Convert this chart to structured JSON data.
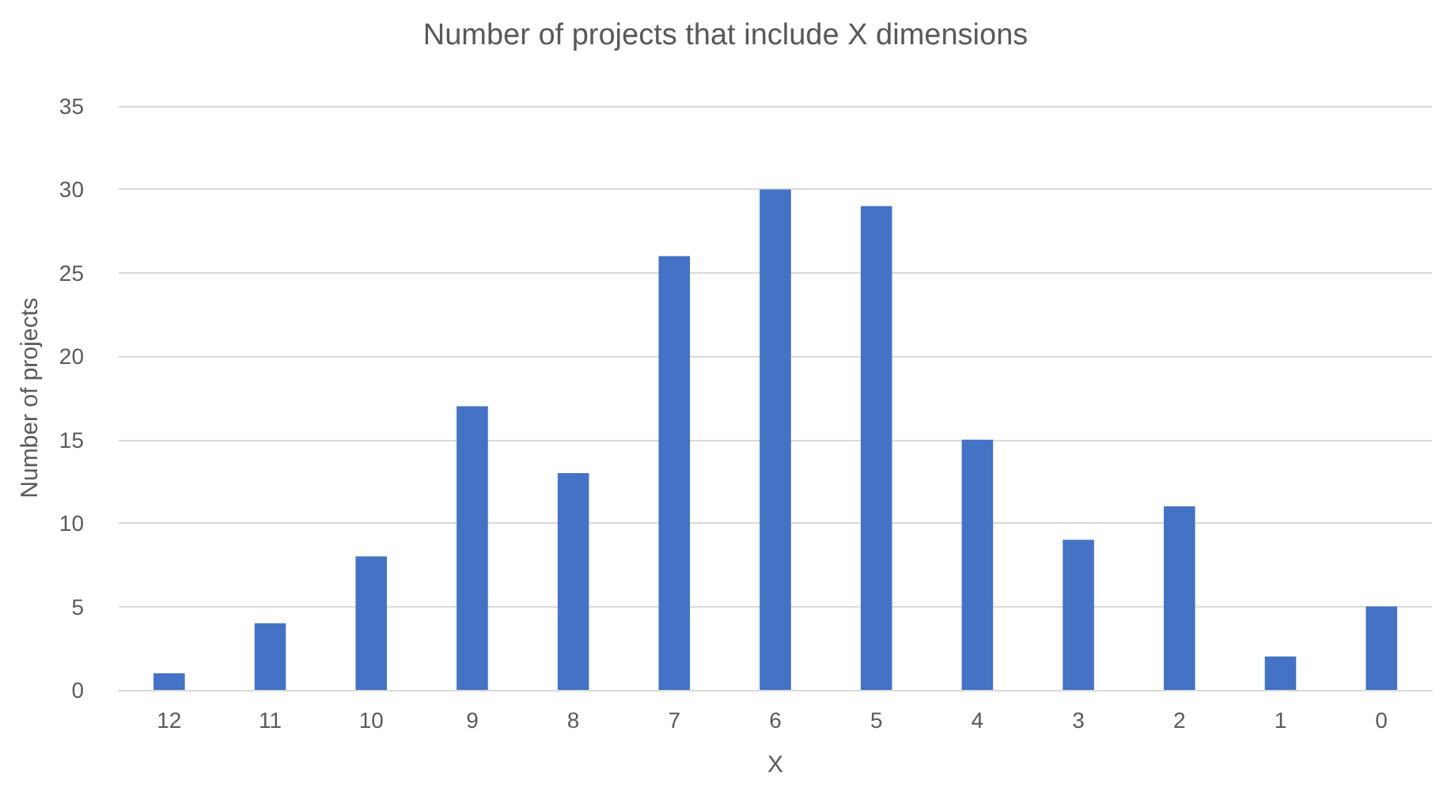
{
  "chart_data": {
    "type": "bar",
    "title": "Number of projects that include X dimensions",
    "xlabel": "X",
    "ylabel": "Number of projects",
    "categories": [
      "12",
      "11",
      "10",
      "9",
      "8",
      "7",
      "6",
      "5",
      "4",
      "3",
      "2",
      "1",
      "0"
    ],
    "values": [
      1,
      4,
      8,
      17,
      13,
      26,
      30,
      29,
      15,
      9,
      11,
      2,
      5
    ],
    "color": "#4472c4",
    "ylim": [
      0,
      35
    ],
    "yticks": [
      0,
      5,
      10,
      15,
      20,
      25,
      30,
      35
    ],
    "grid": "y"
  }
}
